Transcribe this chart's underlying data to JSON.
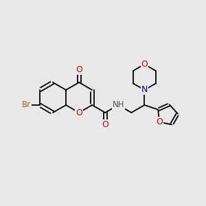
{
  "background_color": "#e8e8e8",
  "bond_color": "#000000",
  "atom_colors": {
    "O": "#ff0000",
    "N": "#0000ff",
    "Br": "#cc6600",
    "H": "#000000",
    "C": "#000000"
  },
  "font_size_atom": 9,
  "font_size_label": 8,
  "figsize": [
    3.0,
    3.0
  ],
  "dpi": 100
}
